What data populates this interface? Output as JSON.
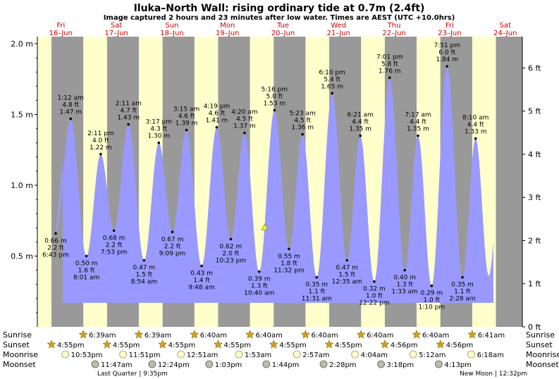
{
  "header": {
    "title": "Iluka–North Wall: rising  ordinary tide at 0.7m (2.4ft)",
    "subtitle": "Image captured 2 hours and 23 minutes after low water. Times are AEST (UTC +10.0hrs)"
  },
  "colors": {
    "day": "#ffffcc",
    "night": "#999999",
    "tide": "#9999ff",
    "axis": "#000000",
    "date": "#cc0000",
    "sun": "#d4a017",
    "moon": "#ffffcc"
  },
  "chart_data": {
    "type": "area",
    "title": "Iluka–North Wall: rising  ordinary tide at 0.7m (2.4ft)",
    "ylim": [
      0,
      2.05
    ],
    "left_ticks": [
      {
        "v": 0.5,
        "label": "0.5 m"
      },
      {
        "v": 1.0,
        "label": "1.0 m"
      },
      {
        "v": 1.5,
        "label": "1.5 m"
      },
      {
        "v": 2.0,
        "label": "2.0 m"
      }
    ],
    "right_ticks": [
      {
        "ft": 0,
        "label": "0 ft"
      },
      {
        "ft": 1,
        "label": "1 ft"
      },
      {
        "ft": 2,
        "label": "2 ft"
      },
      {
        "ft": 3,
        "label": "3 ft"
      },
      {
        "ft": 4,
        "label": "4 ft"
      },
      {
        "ft": 5,
        "label": "5 ft"
      },
      {
        "ft": 6,
        "label": "6 ft"
      }
    ],
    "days": [
      {
        "dow": "Fri",
        "date": "16–Jun"
      },
      {
        "dow": "Sat",
        "date": "17–Jun"
      },
      {
        "dow": "Sun",
        "date": "18–Jun"
      },
      {
        "dow": "Mon",
        "date": "19–Jun"
      },
      {
        "dow": "Tue",
        "date": "20–Jun"
      },
      {
        "dow": "Wed",
        "date": "21–Jun"
      },
      {
        "dow": "Thu",
        "date": "22–Jun"
      },
      {
        "dow": "Fri",
        "date": "23–Jun"
      },
      {
        "dow": "Sat",
        "date": "24–Jun"
      }
    ],
    "tides": [
      {
        "t": "18:43",
        "d": 0,
        "m": 0.66,
        "ft": "2.2 ft",
        "time": "6:43 pm",
        "hi": false
      },
      {
        "t": "01:12",
        "d": 1,
        "m": 1.47,
        "ft": "4.8 ft",
        "time": "1:12 am",
        "hi": true
      },
      {
        "t": "08:01",
        "d": 1,
        "m": 0.5,
        "ft": "1.6 ft",
        "time": "8:01 am",
        "hi": false
      },
      {
        "t": "14:11",
        "d": 1,
        "m": 1.22,
        "ft": "4.0 ft",
        "time": "2:11 pm",
        "hi": true
      },
      {
        "t": "19:53",
        "d": 1,
        "m": 0.68,
        "ft": "2.2 ft",
        "time": "7:53 pm",
        "hi": false
      },
      {
        "t": "02:11",
        "d": 2,
        "m": 1.43,
        "ft": "4.7 ft",
        "time": "2:11 am",
        "hi": true
      },
      {
        "t": "08:54",
        "d": 2,
        "m": 0.47,
        "ft": "1.5 ft",
        "time": "8:54 am",
        "hi": false
      },
      {
        "t": "15:17",
        "d": 2,
        "m": 1.3,
        "ft": "4.3 ft",
        "time": "3:17 pm",
        "hi": true
      },
      {
        "t": "21:09",
        "d": 2,
        "m": 0.67,
        "ft": "2.2 ft",
        "time": "9:09 pm",
        "hi": false
      },
      {
        "t": "03:15",
        "d": 3,
        "m": 1.39,
        "ft": "4.6 ft",
        "time": "3:15 am",
        "hi": true
      },
      {
        "t": "09:48",
        "d": 3,
        "m": 0.43,
        "ft": "1.4 ft",
        "time": "9:48 am",
        "hi": false
      },
      {
        "t": "16:19",
        "d": 3,
        "m": 1.41,
        "ft": "4.6 ft",
        "time": "4:19 pm",
        "hi": true
      },
      {
        "t": "22:23",
        "d": 3,
        "m": 0.62,
        "ft": "2.0 ft",
        "time": "10:23 pm",
        "hi": false
      },
      {
        "t": "04:20",
        "d": 4,
        "m": 1.37,
        "ft": "4.5 ft",
        "time": "4:20 am",
        "hi": true
      },
      {
        "t": "10:40",
        "d": 4,
        "m": 0.39,
        "ft": "1.3 ft",
        "time": "10:40 am",
        "hi": false
      },
      {
        "t": "17:16",
        "d": 4,
        "m": 1.53,
        "ft": "5.0 ft",
        "time": "5:16 pm",
        "hi": true
      },
      {
        "t": "23:32",
        "d": 4,
        "m": 0.55,
        "ft": "1.8 ft",
        "time": "11:32 pm",
        "hi": false
      },
      {
        "t": "05:23",
        "d": 5,
        "m": 1.36,
        "ft": "4.5 ft",
        "time": "5:23 am",
        "hi": true
      },
      {
        "t": "11:31",
        "d": 5,
        "m": 0.35,
        "ft": "1.1 ft",
        "time": "11:31 am",
        "hi": false
      },
      {
        "t": "18:10",
        "d": 5,
        "m": 1.65,
        "ft": "5.4 ft",
        "time": "6:10 pm",
        "hi": true
      },
      {
        "t": "00:35",
        "d": 6,
        "m": 0.47,
        "ft": "1.5 ft",
        "time": "12:35 am",
        "hi": false
      },
      {
        "t": "06:21",
        "d": 6,
        "m": 1.35,
        "ft": "4.4 ft",
        "time": "6:21 am",
        "hi": true
      },
      {
        "t": "12:22",
        "d": 6,
        "m": 0.32,
        "ft": "1.0 ft",
        "time": "12:22 pm",
        "hi": false
      },
      {
        "t": "19:01",
        "d": 6,
        "m": 1.76,
        "ft": "5.8 ft",
        "time": "7:01 pm",
        "hi": true
      },
      {
        "t": "01:33",
        "d": 7,
        "m": 0.4,
        "ft": "1.3 ft",
        "time": "1:33 am",
        "hi": false
      },
      {
        "t": "07:17",
        "d": 7,
        "m": 1.35,
        "ft": "4.4 ft",
        "time": "7:17 am",
        "hi": true
      },
      {
        "t": "13:10",
        "d": 7,
        "m": 0.29,
        "ft": "1.0 ft",
        "time": "1:10 pm",
        "hi": false
      },
      {
        "t": "19:51",
        "d": 7,
        "m": 1.84,
        "ft": "6.0 ft",
        "time": "7:51 pm",
        "hi": true
      },
      {
        "t": "02:28",
        "d": 8,
        "m": 0.35,
        "ft": "1.1 ft",
        "time": "2:28 am",
        "hi": false
      },
      {
        "t": "08:10",
        "d": 8,
        "m": 1.33,
        "ft": "4.4 ft",
        "time": "8:10 am",
        "hi": true
      }
    ],
    "current": {
      "t": "13:03",
      "d": 4,
      "m": 0.7
    },
    "sunrise": [
      "6:39am",
      "6:39am",
      "6:40am",
      "6:40am",
      "6:40am",
      "6:40am",
      "6:40am",
      "6:41am"
    ],
    "sunset": [
      "4:55pm",
      "4:55pm",
      "4:55pm",
      "4:55pm",
      "4:55pm",
      "4:55pm",
      "4:56pm",
      "4:56pm"
    ],
    "moonrise": [
      "10:53pm",
      "11:51pm",
      "12:51am",
      "1:53am",
      "2:57am",
      "4:04am",
      "5:12am",
      "6:18am"
    ],
    "moonset": [
      "11:47am",
      "12:24pm",
      "1:03pm",
      "1:44pm",
      "2:28pm",
      "3:18pm",
      "4:13pm"
    ],
    "moon_phases": [
      {
        "label": "Last Quarter | 9:35pm"
      },
      {
        "label": "New Moon | 12:32pm"
      }
    ],
    "row_labels": {
      "sunrise": "Sunrise",
      "sunset": "Sunset",
      "moonrise": "Moonrise",
      "moonset": "Moonset"
    }
  }
}
